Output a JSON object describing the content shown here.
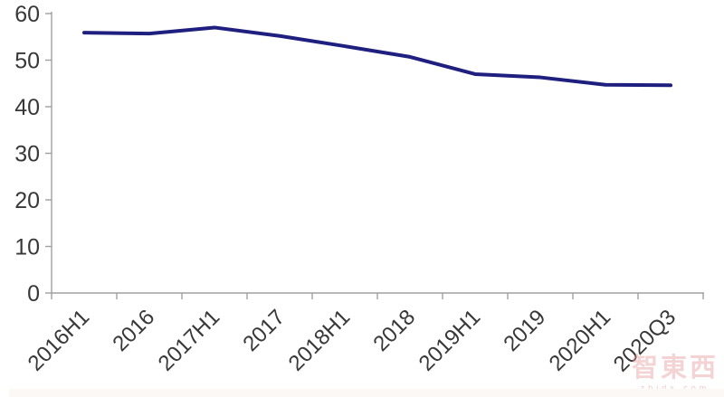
{
  "chart_data": {
    "type": "line",
    "title": "",
    "xlabel": "",
    "ylabel": "",
    "categories": [
      "2016H1",
      "2016",
      "2017H1",
      "2017",
      "2018H1",
      "2018",
      "2019H1",
      "2019",
      "2020H1",
      "2020Q3"
    ],
    "series": [
      {
        "name": "",
        "values": [
          55.9,
          55.7,
          57.0,
          55.2,
          53.0,
          50.7,
          47.0,
          46.3,
          44.7,
          44.6
        ],
        "color": "#1f1f80"
      }
    ],
    "ylim": [
      0,
      60
    ],
    "yticks": [
      0,
      10,
      20,
      30,
      40,
      50,
      60
    ],
    "grid": false,
    "legend": "none",
    "axis_color": "#a0a0a0",
    "tick_label_color": "#383838",
    "x_label_rotation_deg": -45
  },
  "watermark": {
    "logo_text": "智東西",
    "sub_text": "zhidx.com"
  }
}
